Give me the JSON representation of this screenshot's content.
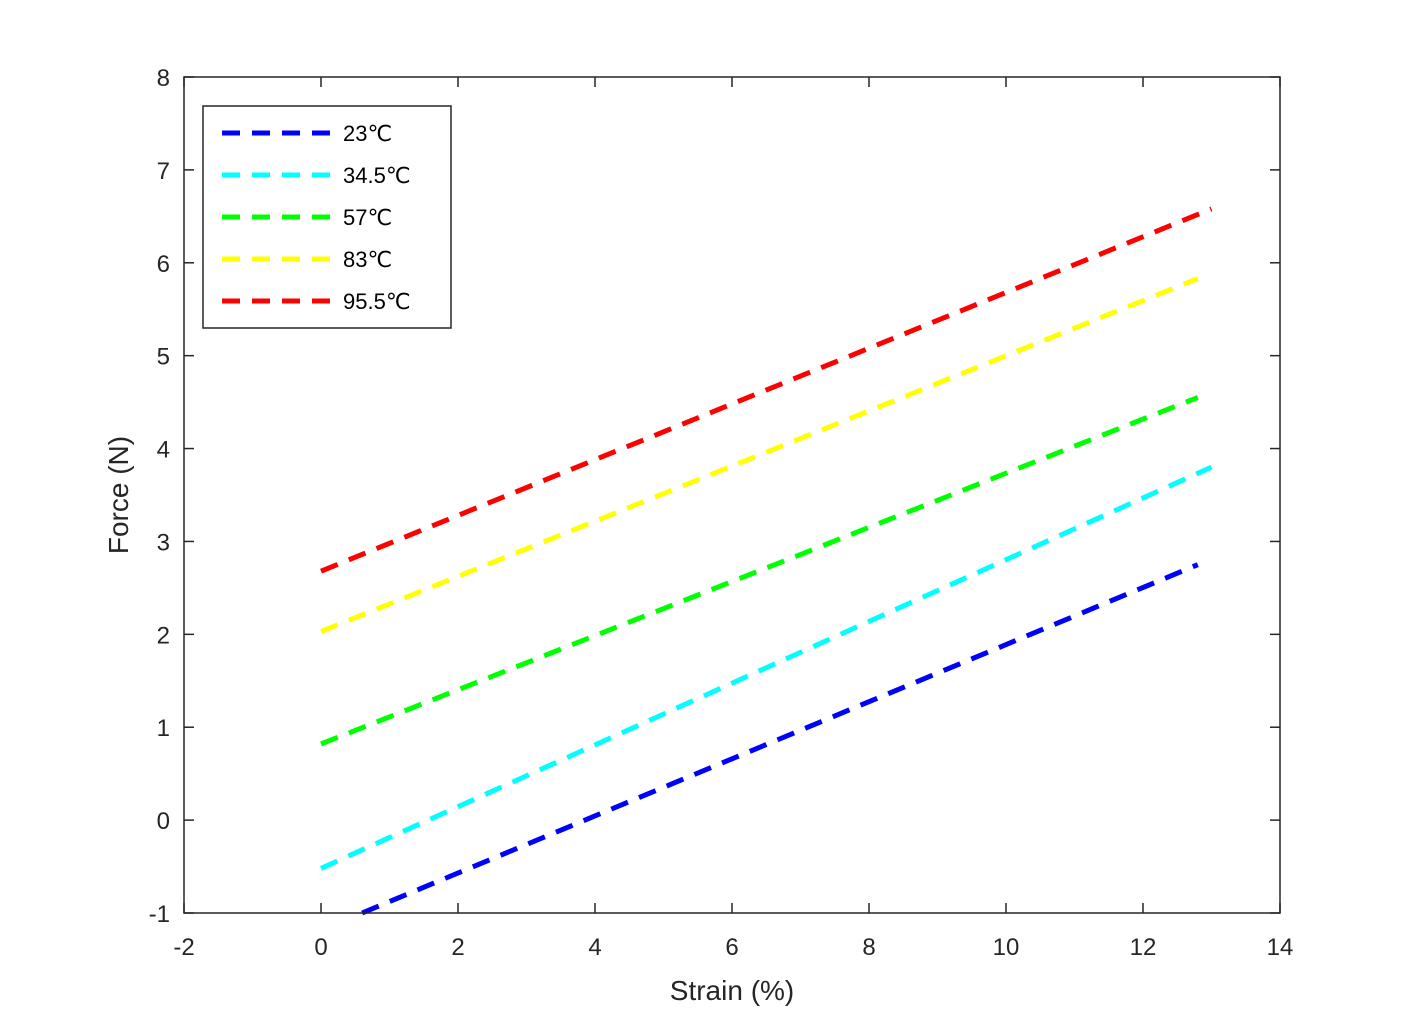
{
  "chart_data": {
    "type": "line",
    "title": "",
    "xlabel": "Strain (%)",
    "ylabel": "Force (N)",
    "xlim": [
      -2,
      14
    ],
    "ylim": [
      -1,
      8
    ],
    "xticks": [
      "-2",
      "0",
      "2",
      "4",
      "6",
      "8",
      "10",
      "12",
      "14"
    ],
    "yticks": [
      "-1",
      "0",
      "1",
      "2",
      "3",
      "4",
      "5",
      "6",
      "7",
      "8"
    ],
    "grid": false,
    "legend_position": "top-left",
    "line_style": "dashed",
    "series": [
      {
        "name": "23℃",
        "color": "#0000ff",
        "x": [
          0.6,
          12.8
        ],
        "y": [
          -1.0,
          2.75
        ]
      },
      {
        "name": "34.5℃",
        "color": "#00ffff",
        "x": [
          0.0,
          13.0
        ],
        "y": [
          -0.52,
          3.8
        ]
      },
      {
        "name": "57℃",
        "color": "#00ff00",
        "x": [
          0.0,
          12.8
        ],
        "y": [
          0.82,
          4.55
        ]
      },
      {
        "name": "83℃",
        "color": "#ffff00",
        "x": [
          0.0,
          12.8
        ],
        "y": [
          2.03,
          5.83
        ]
      },
      {
        "name": "95.5℃",
        "color": "#ff0000",
        "x": [
          0.0,
          13.0
        ],
        "y": [
          2.68,
          6.58
        ]
      }
    ]
  }
}
